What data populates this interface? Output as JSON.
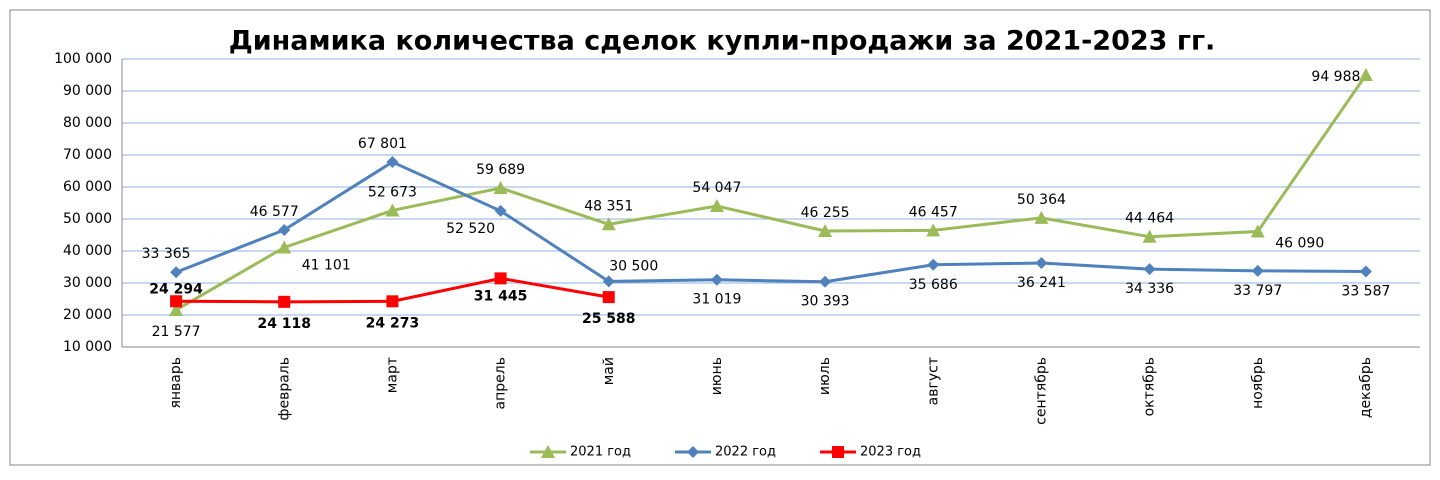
{
  "chart_data": {
    "type": "line",
    "title": "Динамика количества сделок купли-продажи за 2021-2023 гг.",
    "categories": [
      "январь",
      "февраль",
      "март",
      "апрель",
      "май",
      "июнь",
      "июль",
      "август",
      "сентябрь",
      "октябрь",
      "ноябрь",
      "декабрь"
    ],
    "series": [
      {
        "name": "2021 год",
        "color": "#9bbb59",
        "marker": "triangle",
        "values": [
          21577,
          41101,
          52673,
          59689,
          48351,
          54047,
          46255,
          46457,
          50364,
          44464,
          46090,
          94988
        ],
        "value_labels": [
          "21 577",
          "41 101",
          "52 673",
          "59 689",
          "48 351",
          "54 047",
          "46 255",
          "46 457",
          "50 364",
          "44 464",
          "46 090",
          "94 988"
        ]
      },
      {
        "name": "2022 год",
        "color": "#4f81bd",
        "marker": "diamond",
        "values": [
          33365,
          46577,
          67801,
          52520,
          30500,
          31019,
          30393,
          35686,
          36241,
          34336,
          33797,
          33587
        ],
        "value_labels": [
          "33 365",
          "46 577",
          "67 801",
          "52 520",
          "30 500",
          "31 019",
          "30 393",
          "35 686",
          "36 241",
          "34 336",
          "33 797",
          "33 587"
        ]
      },
      {
        "name": "2023 год",
        "color": "#ff0000",
        "marker": "square",
        "bold_labels": true,
        "values": [
          24294,
          24118,
          24273,
          31445,
          25588,
          null,
          null,
          null,
          null,
          null,
          null,
          null
        ],
        "value_labels": [
          "24 294",
          "24 118",
          "24 273",
          "31 445",
          "25 588",
          null,
          null,
          null,
          null,
          null,
          null,
          null
        ]
      }
    ],
    "ylim": [
      10000,
      100000
    ],
    "yticks": [
      {
        "value": 10000,
        "label": "10 000"
      },
      {
        "value": 20000,
        "label": "20 000"
      },
      {
        "value": 30000,
        "label": "30 000"
      },
      {
        "value": 40000,
        "label": "40 000"
      },
      {
        "value": 50000,
        "label": "50 000"
      },
      {
        "value": 60000,
        "label": "60 000"
      },
      {
        "value": 70000,
        "label": "70 000"
      },
      {
        "value": 80000,
        "label": "80 000"
      },
      {
        "value": 90000,
        "label": "90 000"
      },
      {
        "value": 100000,
        "label": "100 000"
      }
    ],
    "grid": true,
    "legend": "bottom"
  }
}
